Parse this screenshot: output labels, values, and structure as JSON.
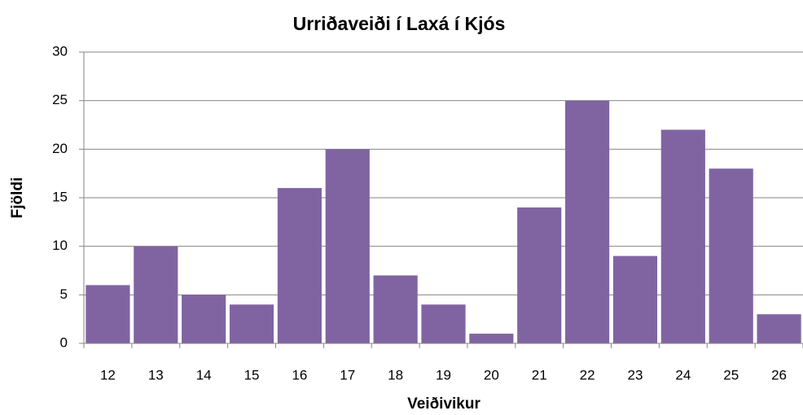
{
  "chart_data": {
    "type": "bar",
    "title": "Urriðaveiði í Laxá í Kjós",
    "x_label": "Veiðivikur",
    "y_label": "Fjöldi",
    "categories": [
      "12",
      "13",
      "14",
      "15",
      "16",
      "17",
      "18",
      "19",
      "20",
      "21",
      "22",
      "23",
      "24",
      "25",
      "26"
    ],
    "values": [
      6,
      10,
      5,
      4,
      16,
      20,
      7,
      4,
      1,
      14,
      25,
      9,
      22,
      18,
      3
    ],
    "color": "#8064a2",
    "ylim": [
      0,
      30
    ],
    "yticks": [
      0,
      5,
      10,
      15,
      20,
      25,
      30
    ],
    "grid": true
  }
}
